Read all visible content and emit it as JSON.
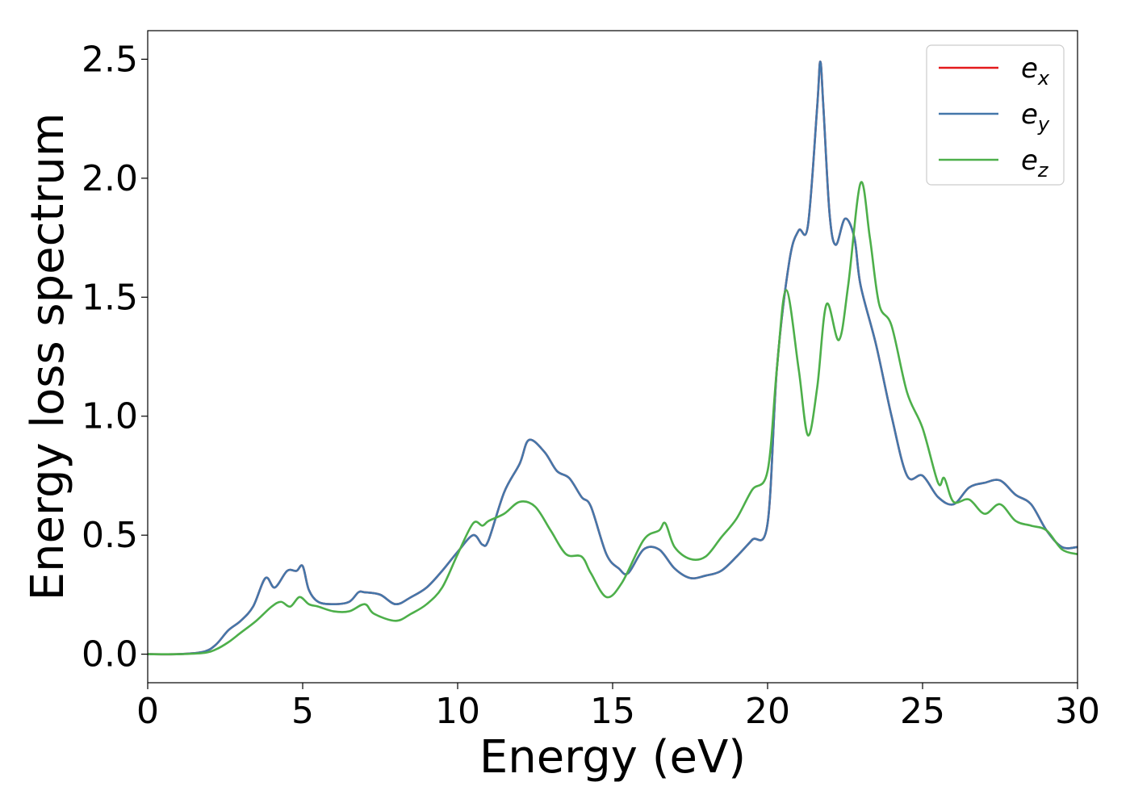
{
  "chart_data": {
    "type": "line",
    "xlabel": "Energy (eV)",
    "ylabel": "Energy loss spectrum",
    "xlim": [
      0,
      30
    ],
    "ylim": [
      -0.12,
      2.62
    ],
    "xticks": [
      "0",
      "5",
      "10",
      "15",
      "20",
      "25",
      "30"
    ],
    "yticks": [
      "0.0",
      "0.5",
      "1.0",
      "1.5",
      "2.0",
      "2.5"
    ],
    "grid": false,
    "legend": "top-right",
    "series": [
      {
        "name": "e",
        "subscript": "x",
        "color": "#e41a1c",
        "x": [
          0,
          1,
          1.8,
          2.2,
          2.6,
          3,
          3.4,
          3.8,
          4.1,
          4.5,
          4.8,
          5,
          5.2,
          5.5,
          6,
          6.5,
          6.8,
          7,
          7.5,
          8,
          8.5,
          9,
          9.5,
          10,
          10.5,
          10.8,
          11,
          11.5,
          12,
          12.3,
          12.8,
          13.2,
          13.6,
          14,
          14.3,
          14.8,
          15.2,
          15.5,
          16,
          16.5,
          17,
          17.5,
          18,
          18.5,
          19,
          19.5,
          20,
          20.3,
          20.7,
          21,
          21.3,
          21.6,
          21.7,
          21.8,
          22,
          22.2,
          22.5,
          22.8,
          23,
          23.5,
          24,
          24.5,
          25,
          25.5,
          26,
          26.5,
          27,
          27.5,
          28,
          28.5,
          29,
          29.5,
          30
        ],
        "values": [
          0,
          0,
          0.01,
          0.04,
          0.1,
          0.14,
          0.2,
          0.32,
          0.28,
          0.35,
          0.35,
          0.37,
          0.27,
          0.22,
          0.21,
          0.22,
          0.26,
          0.26,
          0.25,
          0.21,
          0.24,
          0.28,
          0.35,
          0.43,
          0.5,
          0.46,
          0.48,
          0.68,
          0.8,
          0.9,
          0.85,
          0.77,
          0.74,
          0.66,
          0.62,
          0.42,
          0.36,
          0.34,
          0.44,
          0.44,
          0.36,
          0.32,
          0.33,
          0.35,
          0.41,
          0.48,
          0.55,
          1.2,
          1.65,
          1.78,
          1.8,
          2.3,
          2.49,
          2.3,
          1.85,
          1.72,
          1.83,
          1.75,
          1.55,
          1.3,
          1.0,
          0.75,
          0.75,
          0.66,
          0.63,
          0.7,
          0.72,
          0.73,
          0.67,
          0.63,
          0.52,
          0.45,
          0.45
        ]
      },
      {
        "name": "e",
        "subscript": "y",
        "color": "#4477aa",
        "x": [
          0,
          1,
          1.8,
          2.2,
          2.6,
          3,
          3.4,
          3.8,
          4.1,
          4.5,
          4.8,
          5,
          5.2,
          5.5,
          6,
          6.5,
          6.8,
          7,
          7.5,
          8,
          8.5,
          9,
          9.5,
          10,
          10.5,
          10.8,
          11,
          11.5,
          12,
          12.3,
          12.8,
          13.2,
          13.6,
          14,
          14.3,
          14.8,
          15.2,
          15.5,
          16,
          16.5,
          17,
          17.5,
          18,
          18.5,
          19,
          19.5,
          20,
          20.3,
          20.7,
          21,
          21.3,
          21.6,
          21.7,
          21.8,
          22,
          22.2,
          22.5,
          22.8,
          23,
          23.5,
          24,
          24.5,
          25,
          25.5,
          26,
          26.5,
          27,
          27.5,
          28,
          28.5,
          29,
          29.5,
          30
        ],
        "values": [
          0,
          0,
          0.01,
          0.04,
          0.1,
          0.14,
          0.2,
          0.32,
          0.28,
          0.35,
          0.35,
          0.37,
          0.27,
          0.22,
          0.21,
          0.22,
          0.26,
          0.26,
          0.25,
          0.21,
          0.24,
          0.28,
          0.35,
          0.43,
          0.5,
          0.46,
          0.48,
          0.68,
          0.8,
          0.9,
          0.85,
          0.77,
          0.74,
          0.66,
          0.62,
          0.42,
          0.36,
          0.34,
          0.44,
          0.44,
          0.36,
          0.32,
          0.33,
          0.35,
          0.41,
          0.48,
          0.55,
          1.2,
          1.65,
          1.78,
          1.8,
          2.3,
          2.49,
          2.3,
          1.85,
          1.72,
          1.83,
          1.75,
          1.55,
          1.3,
          1.0,
          0.75,
          0.75,
          0.66,
          0.63,
          0.7,
          0.72,
          0.73,
          0.67,
          0.63,
          0.52,
          0.45,
          0.45
        ]
      },
      {
        "name": "e",
        "subscript": "z",
        "color": "#4daf4a",
        "x": [
          0,
          1,
          1.8,
          2.2,
          2.6,
          3,
          3.5,
          4,
          4.3,
          4.6,
          4.9,
          5.2,
          5.5,
          6,
          6.5,
          7,
          7.3,
          8,
          8.5,
          9,
          9.5,
          10,
          10.5,
          10.8,
          11,
          11.5,
          12,
          12.5,
          13,
          13.5,
          14,
          14.3,
          14.8,
          15.3,
          16,
          16.5,
          16.7,
          17,
          17.5,
          18,
          18.5,
          19,
          19.5,
          20,
          20.3,
          20.6,
          21,
          21.3,
          21.6,
          21.9,
          22.3,
          22.6,
          23,
          23.3,
          23.6,
          24,
          24.5,
          25,
          25.5,
          25.7,
          26,
          26.5,
          27,
          27.5,
          28,
          28.5,
          29,
          29.5,
          30
        ],
        "values": [
          0,
          0,
          0.005,
          0.02,
          0.05,
          0.09,
          0.14,
          0.2,
          0.22,
          0.2,
          0.24,
          0.21,
          0.2,
          0.18,
          0.18,
          0.21,
          0.17,
          0.14,
          0.17,
          0.21,
          0.28,
          0.42,
          0.55,
          0.54,
          0.56,
          0.59,
          0.64,
          0.62,
          0.52,
          0.42,
          0.41,
          0.34,
          0.24,
          0.3,
          0.48,
          0.52,
          0.55,
          0.45,
          0.4,
          0.41,
          0.49,
          0.57,
          0.69,
          0.77,
          1.2,
          1.53,
          1.2,
          0.92,
          1.12,
          1.47,
          1.32,
          1.55,
          1.98,
          1.75,
          1.47,
          1.38,
          1.1,
          0.95,
          0.72,
          0.74,
          0.64,
          0.65,
          0.59,
          0.63,
          0.56,
          0.54,
          0.52,
          0.44,
          0.42
        ]
      }
    ]
  }
}
